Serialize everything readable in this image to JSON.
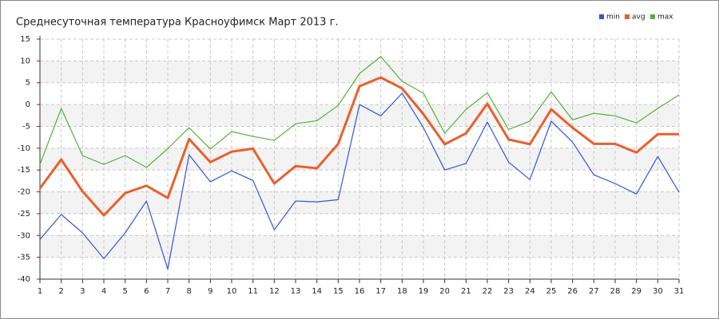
{
  "chart_data": {
    "type": "line",
    "title": "Среднесуточная температура Красноуфимск  Март 2013 г.",
    "x": [
      1,
      2,
      3,
      4,
      5,
      6,
      7,
      8,
      9,
      10,
      11,
      12,
      13,
      14,
      15,
      16,
      17,
      18,
      19,
      20,
      21,
      22,
      23,
      24,
      25,
      26,
      27,
      28,
      29,
      30,
      31
    ],
    "xlim": [
      1,
      31
    ],
    "xticks": [
      1,
      2,
      3,
      4,
      5,
      6,
      7,
      8,
      9,
      10,
      11,
      12,
      13,
      14,
      15,
      16,
      17,
      18,
      19,
      20,
      21,
      22,
      23,
      24,
      25,
      26,
      27,
      28,
      29,
      30,
      31
    ],
    "ylim": [
      -40,
      15
    ],
    "yticks": [
      15,
      10,
      5,
      0,
      -5,
      -10,
      -15,
      -20,
      -25,
      -30,
      -35,
      -40
    ],
    "grid": true,
    "legend": "top-right",
    "series": [
      {
        "name": "min",
        "color": "#3355dd",
        "values": [
          -30.9,
          -25.2,
          -29.4,
          -35.3,
          -29.4,
          -22.1,
          -37.7,
          -11.5,
          -17.7,
          -15.2,
          -17.4,
          -28.7,
          -22.1,
          -22.3,
          -21.8,
          0,
          -2.6,
          2.6,
          -5.3,
          -15,
          -13.5,
          -4,
          -13.2,
          -17.2,
          -3.8,
          -8.6,
          -16.1,
          -18.1,
          -20.5,
          -11.9,
          -20.1
        ]
      },
      {
        "name": "avg",
        "color": "#e8602c",
        "values": [
          -19.2,
          -12.6,
          -19.9,
          -25.4,
          -20.3,
          -18.6,
          -21.4,
          -7.9,
          -13.2,
          -10.8,
          -10.1,
          -18.1,
          -14.1,
          -14.6,
          -9,
          4.2,
          6.2,
          3.7,
          -2.2,
          -9.1,
          -6.6,
          0.2,
          -8,
          -9.1,
          -1.1,
          -5.3,
          -9,
          -9,
          -11,
          -6.8,
          -6.8
        ]
      },
      {
        "name": "max",
        "color": "#55b03a",
        "values": [
          -13.7,
          -0.9,
          -11.7,
          -13.7,
          -11.7,
          -14.4,
          -10.1,
          -5.3,
          -10.2,
          -6.2,
          -7.3,
          -8.2,
          -4.4,
          -3.7,
          -0.2,
          7.1,
          11,
          5.3,
          2.6,
          -6.6,
          -1.1,
          2.7,
          -5.7,
          -3.8,
          2.9,
          -3.5,
          -2,
          -2.6,
          -4.2,
          -0.9,
          2.2
        ]
      }
    ]
  }
}
